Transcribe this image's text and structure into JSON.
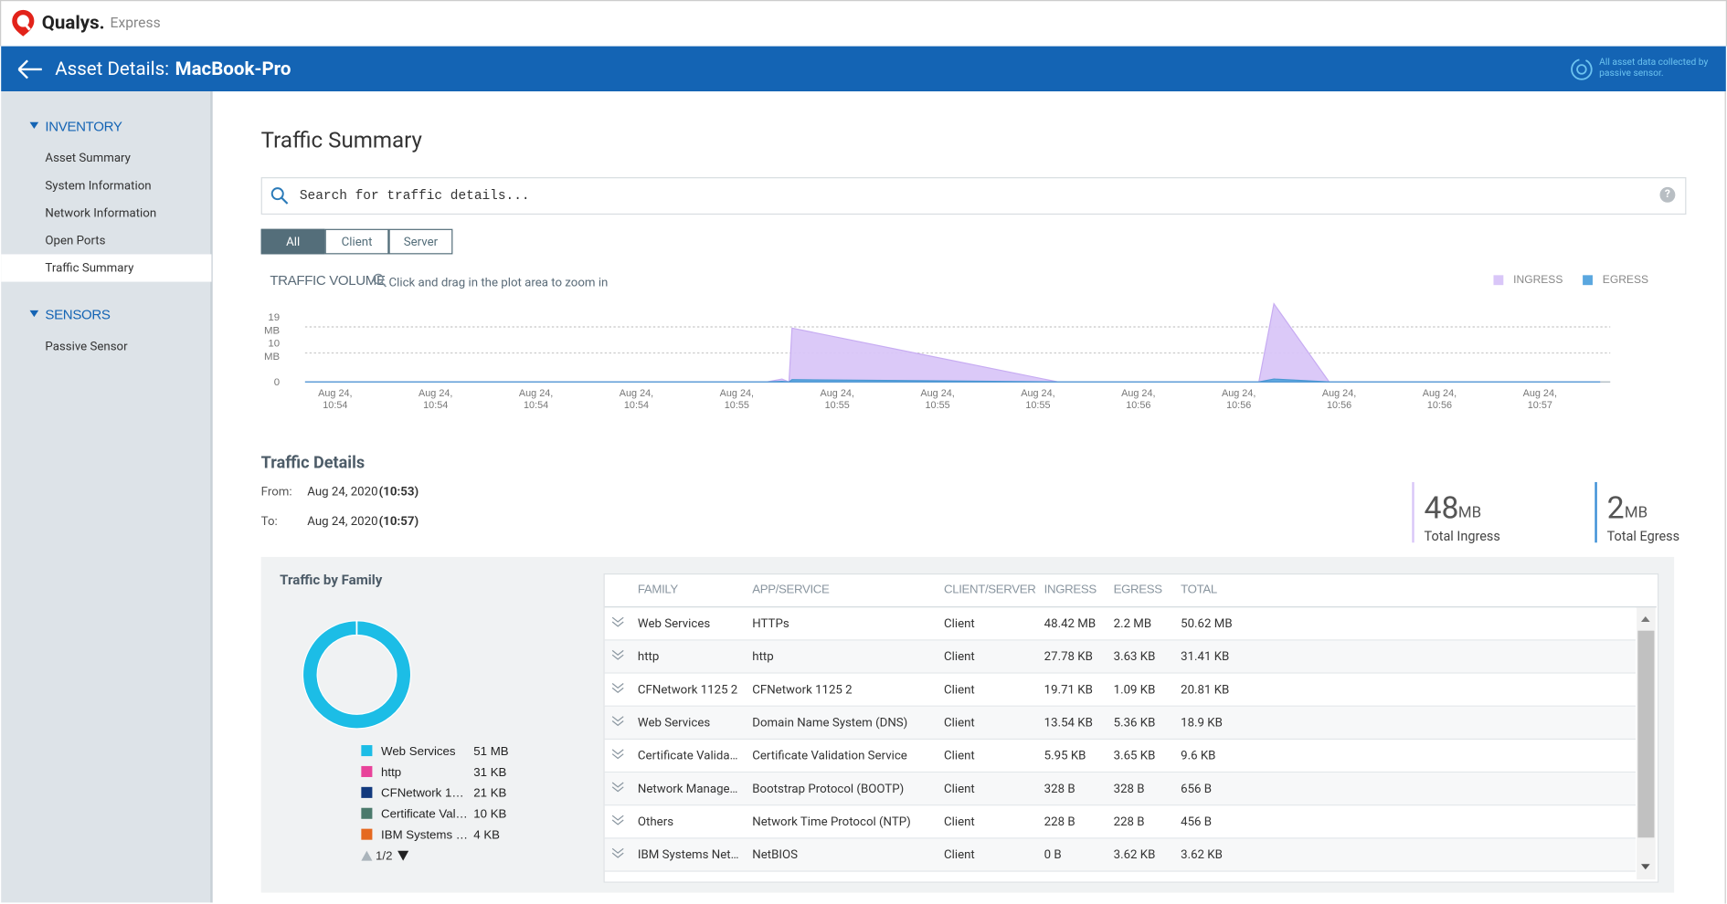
{
  "header": {
    "brand": "Qualys.",
    "product": "Express"
  },
  "asset_bar": {
    "label": "Asset Details:",
    "asset": "MacBook-Pro",
    "note": [
      "All asset data collected by",
      "passive sensor."
    ]
  },
  "sidebar": [
    {
      "title": "INVENTORY",
      "items": [
        "Asset Summary",
        "System Information",
        "Network Information",
        "Open Ports",
        "Traffic Summary"
      ]
    },
    {
      "title": "SENSORS",
      "items": [
        "Passive Sensor"
      ]
    }
  ],
  "page_title": "Traffic Summary",
  "search": {
    "placeholder": "Search for traffic details...",
    "help": "?"
  },
  "filters": [
    "All",
    "Client",
    "Server"
  ],
  "traffic_volume": {
    "type": "area",
    "title": "TRAFFIC VOLUME",
    "hint": "Click and drag in the plot area to zoom in",
    "xlim": [
      -0.3,
      12.7
    ],
    "xticks": [
      {
        "value": 0,
        "label": "Aug 24, 10:54"
      },
      {
        "value": 1,
        "label": "Aug 24, 10:54"
      },
      {
        "value": 2,
        "label": "Aug 24, 10:54"
      },
      {
        "value": 3,
        "label": "Aug 24, 10:54"
      },
      {
        "value": 4,
        "label": "Aug 24, 10:55"
      },
      {
        "value": 5,
        "label": "Aug 24, 10:55"
      },
      {
        "value": 6,
        "label": "Aug 24, 10:55"
      },
      {
        "value": 7,
        "label": "Aug 24, 10:55"
      },
      {
        "value": 8,
        "label": "Aug 24, 10:56"
      },
      {
        "value": 9,
        "label": "Aug 24, 10:56"
      },
      {
        "value": 10,
        "label": "Aug 24, 10:56"
      },
      {
        "value": 11,
        "label": "Aug 24, 10:56"
      },
      {
        "value": 12,
        "label": "Aug 24, 10:57"
      }
    ],
    "ylim": [
      0,
      27
    ],
    "yticks": [
      0,
      {
        "value": 10,
        "label": "10 MB"
      },
      {
        "value": 19,
        "label": "19 MB"
      }
    ],
    "grid": true,
    "x": [
      -0.3,
      4.3,
      4.45,
      4.52,
      4.55,
      7.2,
      9.2,
      9.35,
      9.9,
      12.6
    ],
    "series": [
      {
        "name": "INGRESS",
        "color": "#d9c6f8",
        "values": [
          0,
          0,
          1,
          0,
          18.6,
          0,
          0,
          27,
          0,
          0
        ]
      },
      {
        "name": "EGRESS",
        "color": "#5aa7df",
        "values": [
          0,
          0,
          0.2,
          0,
          0.8,
          0,
          0,
          1,
          0,
          0
        ]
      }
    ]
  },
  "traffic_details": {
    "title": "Traffic Details",
    "from_label": "From:",
    "from_date": "Aug 24, 2020",
    "from_time": "(10:53)",
    "to_label": "To:",
    "to_date": "Aug 24, 2020",
    "to_time": "(10:57)"
  },
  "totals": [
    {
      "value": "48",
      "unit": "MB",
      "label": "Total Ingress",
      "color": "#d9c6f8"
    },
    {
      "value": "2",
      "unit": "MB",
      "label": "Total Egress",
      "color": "#3c8fd6"
    }
  ],
  "traffic_by_family": {
    "type": "pie",
    "title": "Traffic by Family",
    "categories": [
      "Web Services",
      "http",
      "CFNetwork 1…",
      "Certificate Val…",
      "IBM Systems …"
    ],
    "values": [
      51000,
      31,
      21,
      10,
      4
    ],
    "value_labels": [
      "51 MB",
      "31 KB",
      "21 KB",
      "10 KB",
      "4 KB"
    ],
    "colors": [
      "#1cbde6",
      "#e8439a",
      "#123a7e",
      "#4b7a6c",
      "#e5691f"
    ],
    "pager": "1/2"
  },
  "table": {
    "columns": [
      "FAMILY",
      "APP/SERVICE",
      "CLIENT/SERVER",
      "INGRESS",
      "EGRESS",
      "TOTAL"
    ],
    "rows": [
      [
        "Web Services",
        "HTTPs",
        "Client",
        "48.42 MB",
        "2.2 MB",
        "50.62 MB"
      ],
      [
        "http",
        "http",
        "Client",
        "27.78 KB",
        "3.63 KB",
        "31.41 KB"
      ],
      [
        "CFNetwork 1125 2",
        "CFNetwork 1125 2",
        "Client",
        "19.71 KB",
        "1.09 KB",
        "20.81 KB"
      ],
      [
        "Web Services",
        "Domain Name System (DNS)",
        "Client",
        "13.54 KB",
        "5.36 KB",
        "18.9 KB"
      ],
      [
        "Certificate Valida…",
        "Certificate Validation Service",
        "Client",
        "5.95 KB",
        "3.65 KB",
        "9.6 KB"
      ],
      [
        "Network Manage…",
        "Bootstrap Protocol (BOOTP)",
        "Client",
        "328 B",
        "328 B",
        "656 B"
      ],
      [
        "Others",
        "Network Time Protocol (NTP)",
        "Client",
        "228 B",
        "228 B",
        "456 B"
      ],
      [
        "IBM Systems Net…",
        "NetBIOS",
        "Client",
        "0 B",
        "3.62 KB",
        "3.62 KB"
      ]
    ]
  }
}
